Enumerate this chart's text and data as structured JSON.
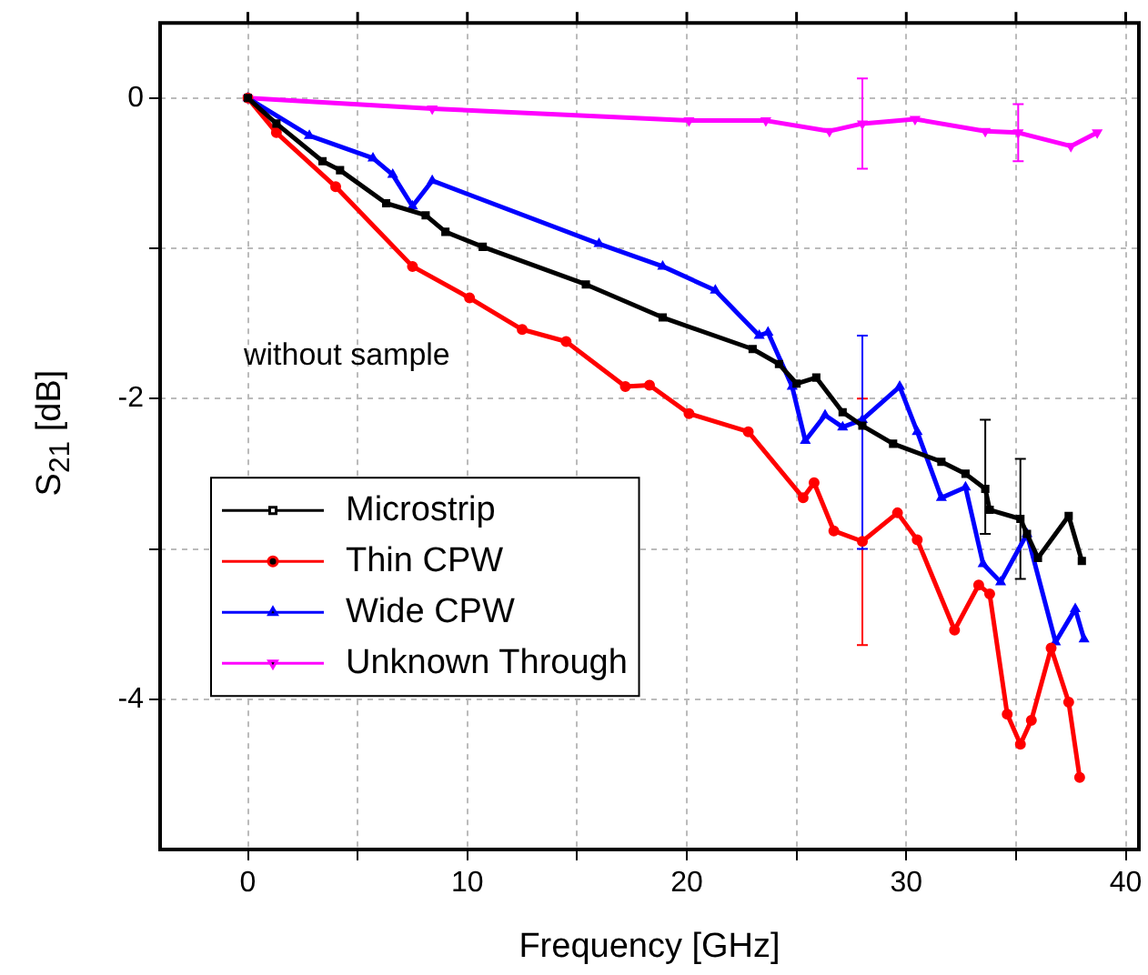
{
  "chart_data": {
    "type": "line",
    "xlabel": "Frequency [GHz]",
    "ylabel": "S$_{21}$ [dB]",
    "annotations": [
      "without sample"
    ],
    "xlim": [
      -4,
      40.6
    ],
    "ylim": [
      -5,
      0.5
    ],
    "xticks": [
      0,
      {
        "value": 5,
        "label": null
      },
      10,
      {
        "value": 15,
        "label": null
      },
      20,
      {
        "value": 25,
        "label": null
      },
      30,
      {
        "value": 35,
        "label": null
      },
      40
    ],
    "yticks": [
      {
        "value": -4,
        "label": "-4"
      },
      {
        "value": -3,
        "label": null
      },
      {
        "value": -2,
        "label": "-2"
      },
      {
        "value": -1,
        "label": null
      },
      0
    ],
    "grid": true,
    "legend": "left",
    "line_style": "solid",
    "series": [
      {
        "name": "Microstrip",
        "color": "#000000",
        "marker": "square",
        "x": [
          0,
          1.3,
          3.4,
          4.2,
          6.3,
          8.1,
          9.0,
          10.7,
          15.4,
          18.9,
          23.0,
          24.2,
          25.0,
          25.9,
          27.1,
          28,
          29.4,
          31.6,
          32.7,
          33.6,
          33.8,
          35.2,
          35.5,
          36.0,
          37.4,
          38.0
        ],
        "values": [
          0,
          -0.17,
          -0.42,
          -0.48,
          -0.7,
          -0.78,
          -0.89,
          -0.99,
          -1.24,
          -1.46,
          -1.67,
          -1.77,
          -1.9,
          -1.86,
          -2.09,
          -2.18,
          -2.3,
          -2.42,
          -2.5,
          -2.6,
          -2.74,
          -2.8,
          -2.9,
          -3.06,
          -2.78,
          -3.08
        ],
        "errors": [
          null,
          null,
          null,
          null,
          null,
          null,
          null,
          null,
          null,
          null,
          null,
          null,
          null,
          null,
          null,
          null,
          null,
          null,
          null,
          [
            -2.9,
            -2.14
          ],
          null,
          [
            -3.2,
            -2.4
          ],
          null,
          null,
          null,
          null
        ]
      },
      {
        "name": "Thin CPW",
        "color": "#ff0000",
        "marker": "circle",
        "x": [
          0,
          1.3,
          4.0,
          7.5,
          10.1,
          12.5,
          14.5,
          17.2,
          18.3,
          20.1,
          22.8,
          25.3,
          25.8,
          26.7,
          28,
          29.6,
          30.5,
          32.2,
          33.3,
          33.8,
          34.6,
          35.2,
          35.7,
          36.6,
          37.4,
          37.9
        ],
        "values": [
          0,
          -0.23,
          -0.59,
          -1.12,
          -1.33,
          -1.54,
          -1.62,
          -1.92,
          -1.91,
          -2.1,
          -2.22,
          -2.66,
          -2.56,
          -2.88,
          -2.95,
          -2.76,
          -2.94,
          -3.54,
          -3.24,
          -3.3,
          -4.1,
          -4.3,
          -4.14,
          -3.66,
          -4.02,
          -4.52
        ],
        "errors": [
          null,
          null,
          null,
          null,
          null,
          null,
          null,
          null,
          null,
          null,
          null,
          null,
          null,
          null,
          [
            -3.64,
            -2.0
          ],
          null,
          null,
          null,
          null,
          null,
          null,
          null,
          null,
          null,
          null,
          null
        ]
      },
      {
        "name": "Wide CPW",
        "color": "#0000ff",
        "marker": "triangle",
        "x": [
          0,
          2.8,
          5.7,
          6.6,
          7.5,
          8.4,
          16.0,
          18.9,
          21.3,
          23.3,
          23.7,
          24.8,
          25.4,
          26.3,
          27.1,
          28,
          29.7,
          30.5,
          31.6,
          32.7,
          33.5,
          34.3,
          35.5,
          36.8,
          37.7,
          38.1
        ],
        "values": [
          0,
          -0.25,
          -0.4,
          -0.51,
          -0.72,
          -0.55,
          -0.97,
          -1.12,
          -1.28,
          -1.58,
          -1.56,
          -1.92,
          -2.28,
          -2.11,
          -2.19,
          -2.14,
          -1.92,
          -2.22,
          -2.66,
          -2.59,
          -3.1,
          -3.22,
          -2.9,
          -3.62,
          -3.4,
          -3.6
        ],
        "errors": [
          null,
          null,
          null,
          null,
          null,
          null,
          null,
          null,
          null,
          null,
          null,
          null,
          null,
          null,
          null,
          [
            -3.0,
            -1.58
          ],
          null,
          null,
          null,
          null,
          null,
          null,
          null,
          null,
          null,
          null
        ]
      },
      {
        "name": "Unknown Through",
        "color": "#ff00ff",
        "marker": "triangle_down",
        "x": [
          0,
          8.4,
          20.1,
          23.6,
          26.5,
          28,
          30.4,
          33.6,
          35.1,
          37.5,
          38.7
        ],
        "values": [
          0,
          -0.07,
          -0.15,
          -0.15,
          -0.22,
          -0.17,
          -0.14,
          -0.22,
          -0.23,
          -0.32,
          -0.23
        ],
        "errors": [
          null,
          null,
          null,
          null,
          null,
          0.3,
          null,
          null,
          0.19,
          null,
          null
        ]
      }
    ]
  }
}
